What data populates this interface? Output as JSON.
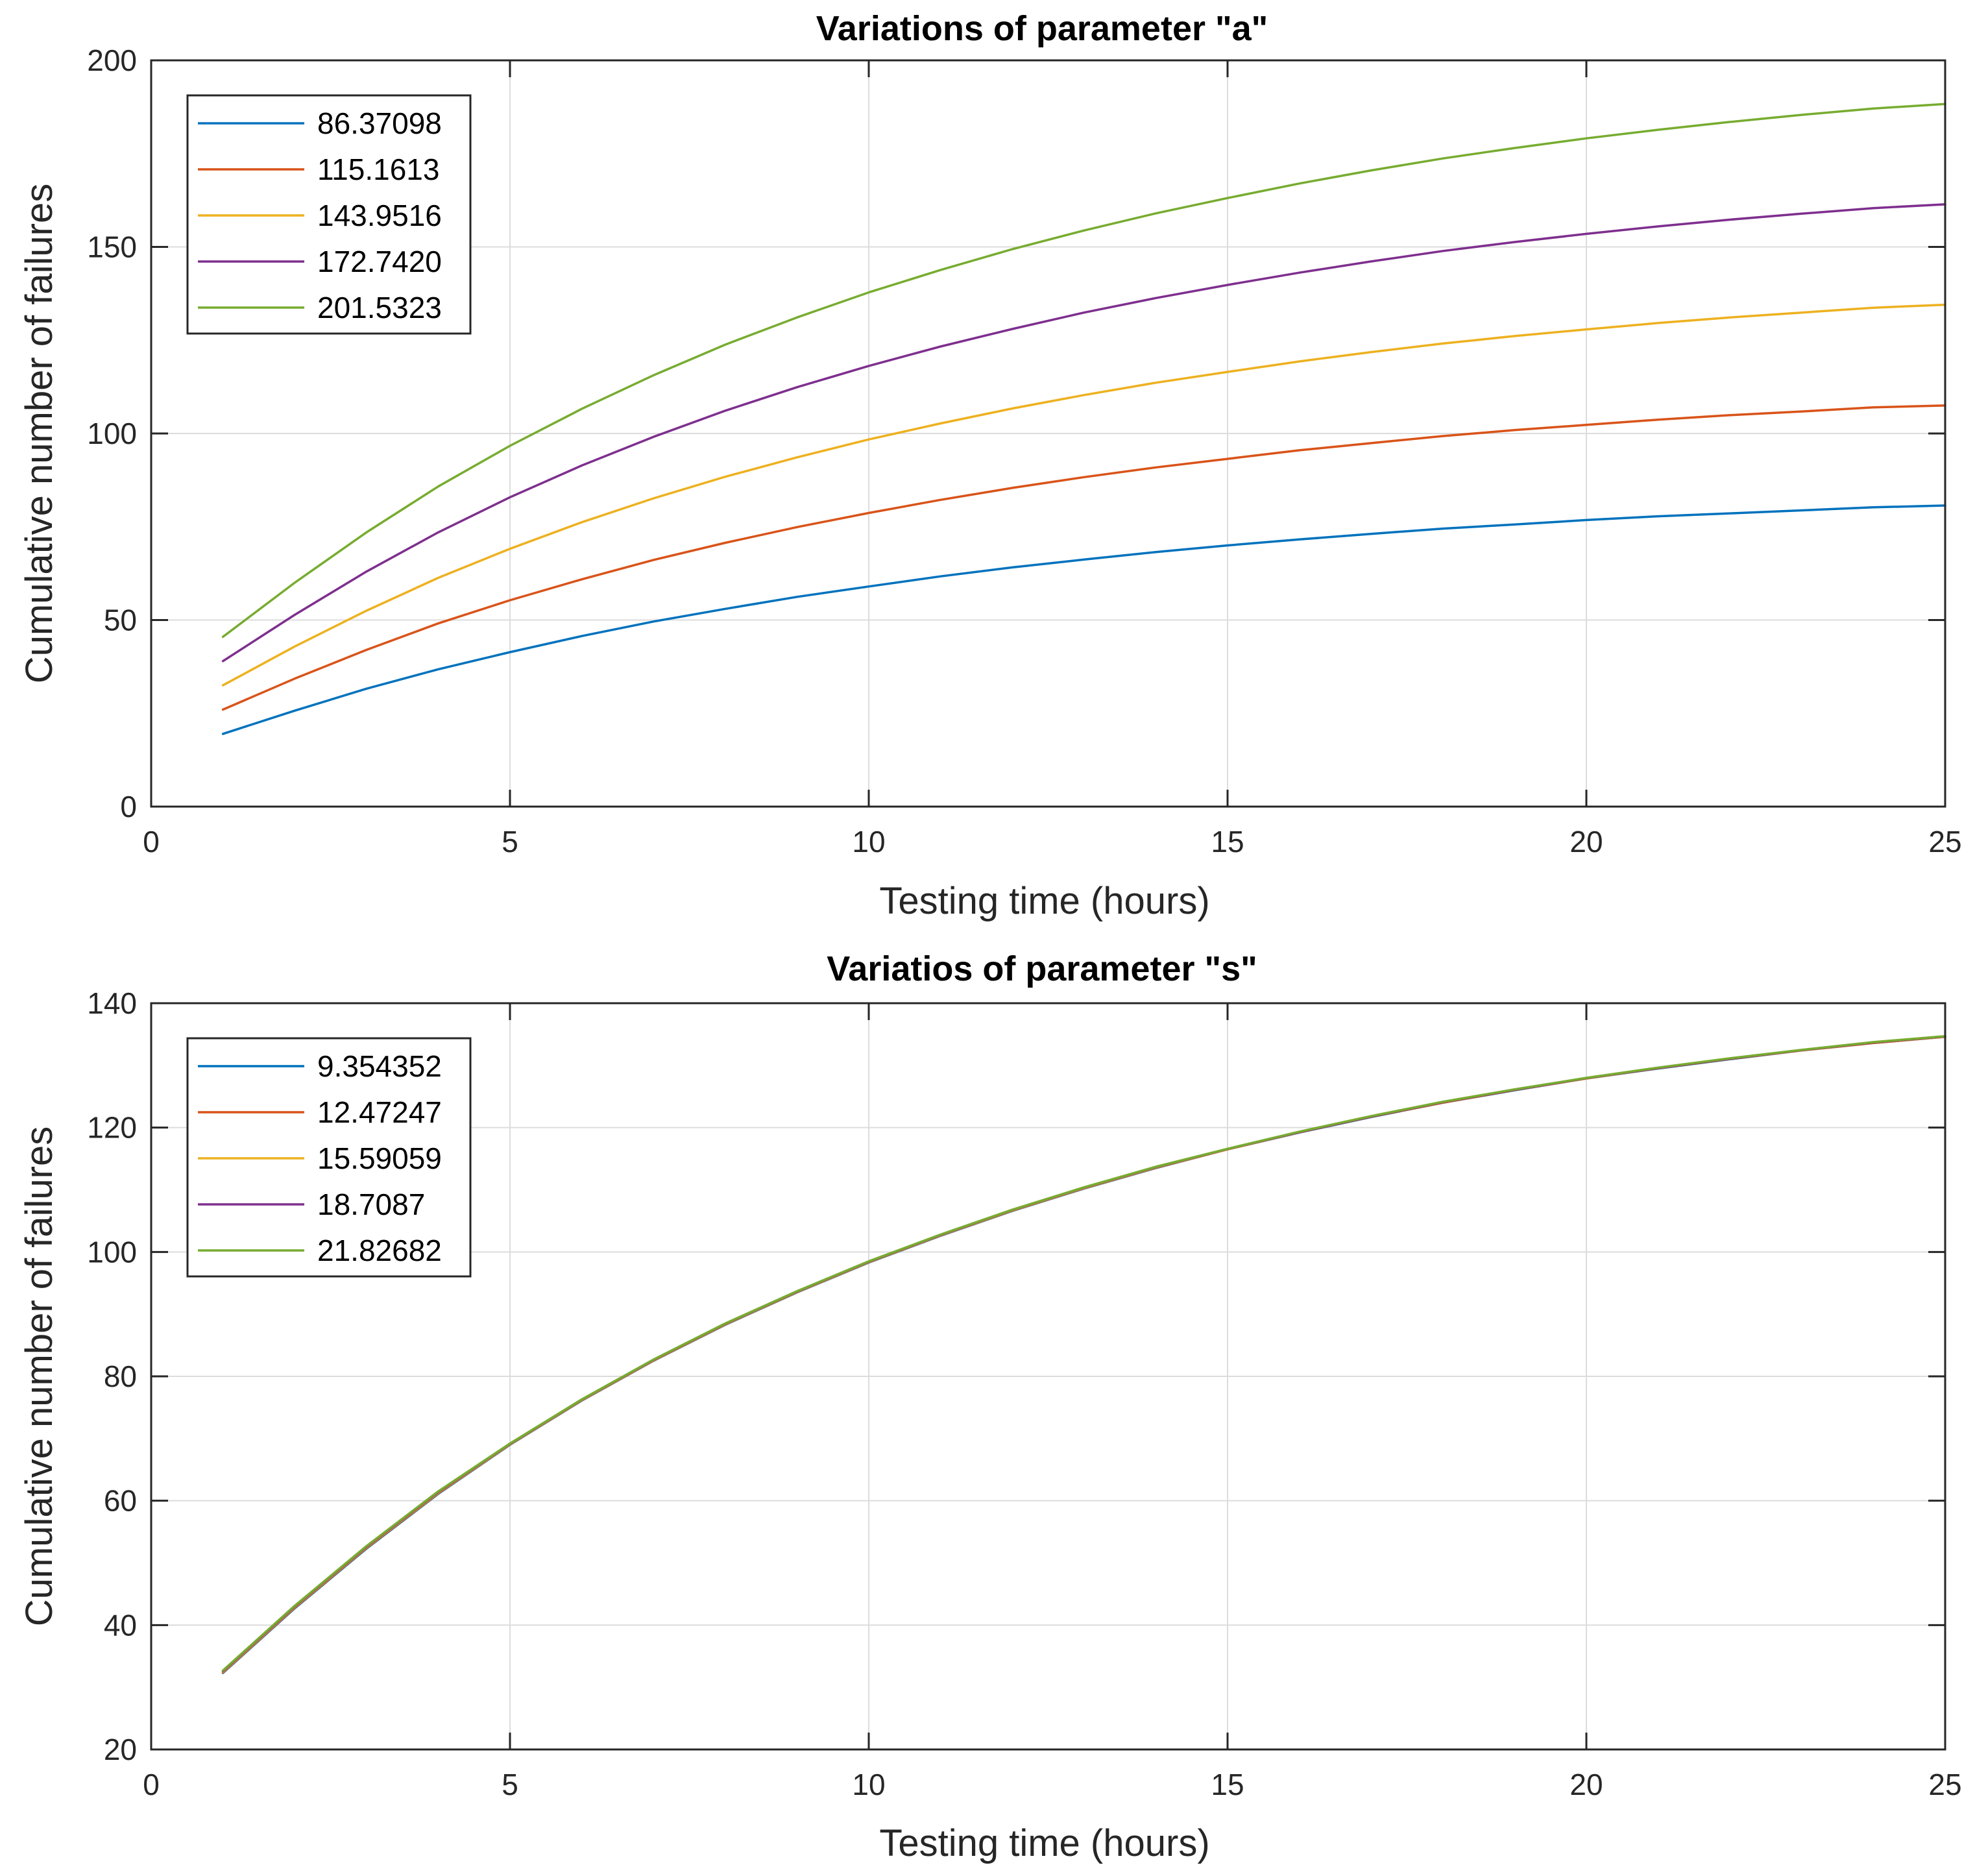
{
  "chart_data": [
    {
      "type": "line",
      "title": "Variations of parameter \"a\"",
      "xlabel": "Testing time (hours)",
      "ylabel": "Cumulative number of failures",
      "xlim": [
        0,
        25
      ],
      "ylim": [
        0,
        200
      ],
      "xticks": [
        0,
        5,
        10,
        15,
        20,
        25
      ],
      "yticks": [
        0,
        50,
        100,
        150,
        200
      ],
      "grid": true,
      "legend_position": "top-left",
      "x": [
        1,
        2,
        3,
        4,
        5,
        6,
        7,
        8,
        9,
        10,
        11,
        12,
        13,
        14,
        15,
        16,
        17,
        18,
        19,
        20,
        21,
        22,
        23,
        24,
        25
      ],
      "series": [
        {
          "name": "86.37098",
          "color": "#0072BD",
          "values": [
            19.5,
            25.7,
            31.6,
            36.8,
            41.4,
            45.7,
            49.6,
            53.0,
            56.2,
            59.0,
            61.7,
            64.1,
            66.2,
            68.2,
            70.0,
            71.6,
            73.1,
            74.5,
            75.6,
            76.8,
            77.8,
            78.6,
            79.4,
            80.2,
            80.7
          ]
        },
        {
          "name": "115.1613",
          "color": "#D95319",
          "values": [
            26.0,
            34.3,
            42.0,
            49.1,
            55.3,
            60.9,
            66.1,
            70.7,
            74.9,
            78.7,
            82.2,
            85.4,
            88.3,
            90.9,
            93.2,
            95.5,
            97.4,
            99.3,
            100.9,
            102.3,
            103.7,
            104.9,
            105.9,
            107.0,
            107.5
          ]
        },
        {
          "name": "143.9516",
          "color": "#EDB120",
          "values": [
            32.5,
            42.9,
            52.5,
            61.3,
            69.1,
            76.2,
            82.6,
            88.4,
            93.6,
            98.4,
            102.7,
            106.7,
            110.3,
            113.6,
            116.5,
            119.3,
            121.8,
            124.1,
            126.1,
            127.9,
            129.6,
            131.1,
            132.4,
            133.7,
            134.5
          ]
        },
        {
          "name": "172.7420",
          "color": "#7E2F8E",
          "values": [
            39.0,
            51.4,
            63.0,
            73.5,
            82.9,
            91.4,
            99.1,
            106.1,
            112.4,
            118.1,
            123.3,
            128.0,
            132.4,
            136.3,
            139.8,
            143.1,
            146.1,
            148.9,
            151.3,
            153.5,
            155.5,
            157.3,
            158.9,
            160.4,
            161.4
          ]
        },
        {
          "name": "201.5323",
          "color": "#77AC30",
          "values": [
            45.5,
            60.0,
            73.5,
            85.8,
            96.7,
            106.6,
            115.6,
            123.8,
            131.1,
            137.8,
            143.8,
            149.4,
            154.4,
            159.0,
            163.1,
            167.0,
            170.5,
            173.7,
            176.5,
            179.1,
            181.4,
            183.5,
            185.4,
            187.1,
            188.3
          ]
        }
      ]
    },
    {
      "type": "line",
      "title": "Variatios of parameter \"s\"",
      "xlabel": "Testing time (hours)",
      "ylabel": "Cumulative number of failures",
      "xlim": [
        0,
        25
      ],
      "ylim": [
        20,
        140
      ],
      "xticks": [
        0,
        5,
        10,
        15,
        20,
        25
      ],
      "yticks": [
        20,
        40,
        60,
        80,
        100,
        120,
        140
      ],
      "grid": true,
      "legend_position": "top-left",
      "x": [
        1,
        2,
        3,
        4,
        5,
        6,
        7,
        8,
        9,
        10,
        11,
        12,
        13,
        14,
        15,
        16,
        17,
        18,
        19,
        20,
        21,
        22,
        23,
        24,
        25
      ],
      "series": [
        {
          "name": "9.354352",
          "color": "#0072BD",
          "values": [
            32.3,
            42.7,
            52.3,
            61.1,
            69.0,
            76.1,
            82.5,
            88.3,
            93.5,
            98.3,
            102.6,
            106.6,
            110.2,
            113.5,
            116.5,
            119.2,
            121.7,
            124.0,
            126.0,
            127.9,
            129.5,
            131.0,
            132.4,
            133.6,
            134.6
          ]
        },
        {
          "name": "12.47247",
          "color": "#D95319",
          "values": [
            32.4,
            42.8,
            52.4,
            61.2,
            69.05,
            76.15,
            82.55,
            88.35,
            93.55,
            98.35,
            102.65,
            106.65,
            110.25,
            113.55,
            116.5,
            119.25,
            121.75,
            124.0,
            126.05,
            127.9,
            129.55,
            131.05,
            132.4,
            133.6,
            134.6
          ]
        },
        {
          "name": "15.59059",
          "color": "#EDB120",
          "values": [
            32.5,
            42.9,
            52.5,
            61.3,
            69.1,
            76.2,
            82.6,
            88.4,
            93.6,
            98.4,
            102.7,
            106.7,
            110.3,
            113.6,
            116.5,
            119.3,
            121.8,
            124.1,
            126.1,
            127.9,
            129.6,
            131.1,
            132.4,
            133.7,
            134.6
          ]
        },
        {
          "name": "18.7087",
          "color": "#7E2F8E",
          "values": [
            32.6,
            43.0,
            52.6,
            61.4,
            69.15,
            76.25,
            82.65,
            88.45,
            93.65,
            98.45,
            102.75,
            106.75,
            110.35,
            113.65,
            116.55,
            119.3,
            121.8,
            124.1,
            126.1,
            127.95,
            129.6,
            131.1,
            132.45,
            133.7,
            134.65
          ]
        },
        {
          "name": "21.82682",
          "color": "#77AC30",
          "values": [
            32.7,
            43.1,
            52.7,
            61.5,
            69.2,
            76.3,
            82.7,
            88.5,
            93.7,
            98.5,
            102.8,
            106.8,
            110.4,
            113.7,
            116.6,
            119.35,
            121.85,
            124.15,
            126.15,
            128.0,
            129.65,
            131.15,
            132.5,
            133.75,
            134.7
          ]
        }
      ]
    }
  ]
}
